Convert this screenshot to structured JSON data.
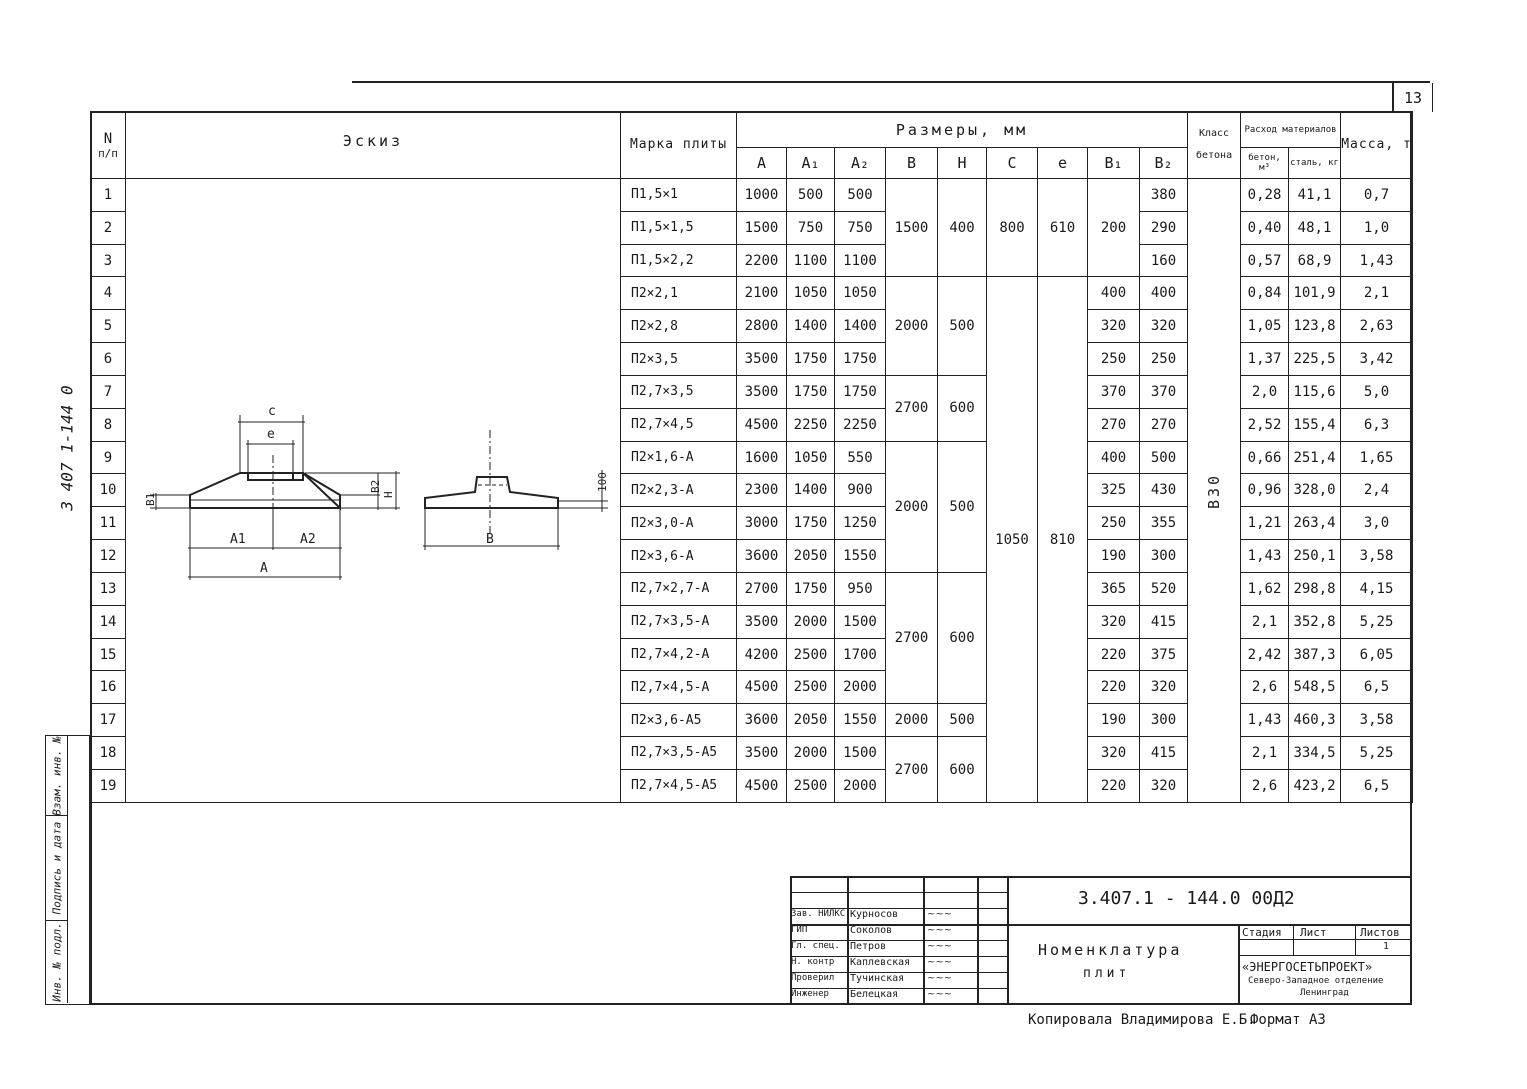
{
  "page_number": "13",
  "document_code_side": "3 407 1-144 0",
  "header": {
    "num": "N",
    "num_sub": "п/п",
    "sketch": "Эскиз",
    "mark": "Марка плиты",
    "sizes": "Размеры, мм",
    "size_cols": [
      "A",
      "A₁",
      "A₂",
      "B",
      "H",
      "C",
      "e",
      "B₁",
      "B₂"
    ],
    "concrete_class": "Класс бетона",
    "materials": "Расход материалов",
    "concrete": "бетон, м³",
    "steel": "сталь, кг",
    "mass": "Масса, т"
  },
  "sketch_labels": {
    "c": "c",
    "e": "e",
    "b1": "B1",
    "b2": "B2",
    "h": "H",
    "a1": "A1",
    "a2": "A2",
    "a": "A",
    "b": "B",
    "dim100": "100"
  },
  "concrete_class_value": "B30",
  "groups": {
    "B_H": [
      {
        "rows": 3,
        "B": "1500",
        "H": "400"
      },
      {
        "rows": 3,
        "B": "2000",
        "H": "500"
      },
      {
        "rows": 2,
        "B": "2700",
        "H": "600"
      },
      {
        "rows": 4,
        "B": "2000",
        "H": "500"
      },
      {
        "rows": 4,
        "B": "2700",
        "H": "600"
      },
      {
        "rows": 1,
        "B": "2000",
        "H": "500"
      },
      {
        "rows": 2,
        "B": "2700",
        "H": "600"
      }
    ],
    "C_e": [
      {
        "rows": 3,
        "C": "800",
        "e": "610"
      },
      {
        "rows": 16,
        "C": "1050",
        "e": "810"
      }
    ],
    "B1_first3": "200"
  },
  "rows": [
    {
      "n": "1",
      "mark": "П1,5×1",
      "A": "1000",
      "A1": "500",
      "A2": "500",
      "B1": "",
      "B2": "380",
      "conc": "0,28",
      "steel": "41,1",
      "mass": "0,7"
    },
    {
      "n": "2",
      "mark": "П1,5×1,5",
      "A": "1500",
      "A1": "750",
      "A2": "750",
      "B1": "",
      "B2": "290",
      "conc": "0,40",
      "steel": "48,1",
      "mass": "1,0"
    },
    {
      "n": "3",
      "mark": "П1,5×2,2",
      "A": "2200",
      "A1": "1100",
      "A2": "1100",
      "B1": "",
      "B2": "160",
      "conc": "0,57",
      "steel": "68,9",
      "mass": "1,43"
    },
    {
      "n": "4",
      "mark": "П2×2,1",
      "A": "2100",
      "A1": "1050",
      "A2": "1050",
      "B1": "400",
      "B2": "400",
      "conc": "0,84",
      "steel": "101,9",
      "mass": "2,1"
    },
    {
      "n": "5",
      "mark": "П2×2,8",
      "A": "2800",
      "A1": "1400",
      "A2": "1400",
      "B1": "320",
      "B2": "320",
      "conc": "1,05",
      "steel": "123,8",
      "mass": "2,63"
    },
    {
      "n": "6",
      "mark": "П2×3,5",
      "A": "3500",
      "A1": "1750",
      "A2": "1750",
      "B1": "250",
      "B2": "250",
      "conc": "1,37",
      "steel": "225,5",
      "mass": "3,42"
    },
    {
      "n": "7",
      "mark": "П2,7×3,5",
      "A": "3500",
      "A1": "1750",
      "A2": "1750",
      "B1": "370",
      "B2": "370",
      "conc": "2,0",
      "steel": "115,6",
      "mass": "5,0"
    },
    {
      "n": "8",
      "mark": "П2,7×4,5",
      "A": "4500",
      "A1": "2250",
      "A2": "2250",
      "B1": "270",
      "B2": "270",
      "conc": "2,52",
      "steel": "155,4",
      "mass": "6,3"
    },
    {
      "n": "9",
      "mark": "П2×1,6-А",
      "A": "1600",
      "A1": "1050",
      "A2": "550",
      "B1": "400",
      "B2": "500",
      "conc": "0,66",
      "steel": "251,4",
      "mass": "1,65"
    },
    {
      "n": "10",
      "mark": "П2×2,3-А",
      "A": "2300",
      "A1": "1400",
      "A2": "900",
      "B1": "325",
      "B2": "430",
      "conc": "0,96",
      "steel": "328,0",
      "mass": "2,4"
    },
    {
      "n": "11",
      "mark": "П2×3,0-А",
      "A": "3000",
      "A1": "1750",
      "A2": "1250",
      "B1": "250",
      "B2": "355",
      "conc": "1,21",
      "steel": "263,4",
      "mass": "3,0"
    },
    {
      "n": "12",
      "mark": "П2×3,6-А",
      "A": "3600",
      "A1": "2050",
      "A2": "1550",
      "B1": "190",
      "B2": "300",
      "conc": "1,43",
      "steel": "250,1",
      "mass": "3,58"
    },
    {
      "n": "13",
      "mark": "П2,7×2,7-А",
      "A": "2700",
      "A1": "1750",
      "A2": "950",
      "B1": "365",
      "B2": "520",
      "conc": "1,62",
      "steel": "298,8",
      "mass": "4,15"
    },
    {
      "n": "14",
      "mark": "П2,7×3,5-А",
      "A": "3500",
      "A1": "2000",
      "A2": "1500",
      "B1": "320",
      "B2": "415",
      "conc": "2,1",
      "steel": "352,8",
      "mass": "5,25"
    },
    {
      "n": "15",
      "mark": "П2,7×4,2-А",
      "A": "4200",
      "A1": "2500",
      "A2": "1700",
      "B1": "220",
      "B2": "375",
      "conc": "2,42",
      "steel": "387,3",
      "mass": "6,05"
    },
    {
      "n": "16",
      "mark": "П2,7×4,5-А",
      "A": "4500",
      "A1": "2500",
      "A2": "2000",
      "B1": "220",
      "B2": "320",
      "conc": "2,6",
      "steel": "548,5",
      "mass": "6,5"
    },
    {
      "n": "17",
      "mark": "П2×3,6-А5",
      "A": "3600",
      "A1": "2050",
      "A2": "1550",
      "B1": "190",
      "B2": "300",
      "conc": "1,43",
      "steel": "460,3",
      "mass": "3,58"
    },
    {
      "n": "18",
      "mark": "П2,7×3,5-А5",
      "A": "3500",
      "A1": "2000",
      "A2": "1500",
      "B1": "320",
      "B2": "415",
      "conc": "2,1",
      "steel": "334,5",
      "mass": "5,25"
    },
    {
      "n": "19",
      "mark": "П2,7×4,5-А5",
      "A": "4500",
      "A1": "2500",
      "A2": "2000",
      "B1": "220",
      "B2": "320",
      "conc": "2,6",
      "steel": "423,2",
      "mass": "6,5"
    }
  ],
  "stamp_side": [
    "Взам. инв. №",
    "Подпись и дата",
    "Инв. № подл."
  ],
  "title_block": {
    "code": "3.407.1 - 144.0  00Д2",
    "title_line1": "Номенклатура",
    "title_line2": "плит",
    "stage_label": "Стадия",
    "sheet_label": "Лист",
    "sheets_label": "Листов",
    "sheets_value": "1",
    "org_name": "«ЭНЕРГОСЕТЬПРОЕКТ»",
    "org_branch": "Северо-Западное отделение",
    "org_city": "Ленинград",
    "staff": [
      {
        "role": "Зав. НИЛКС",
        "name": "Курносов"
      },
      {
        "role": "ГИП",
        "name": "Соколов"
      },
      {
        "role": "Гл. спец.",
        "name": "Петров"
      },
      {
        "role": "Н. контр",
        "name": "Каплевская"
      },
      {
        "role": "Проверил",
        "name": "Тучинская"
      },
      {
        "role": "Инженер",
        "name": "Белецкая"
      }
    ]
  },
  "copied_by": "Копировала Владимирова Е.Б.",
  "format": "Формат А3"
}
